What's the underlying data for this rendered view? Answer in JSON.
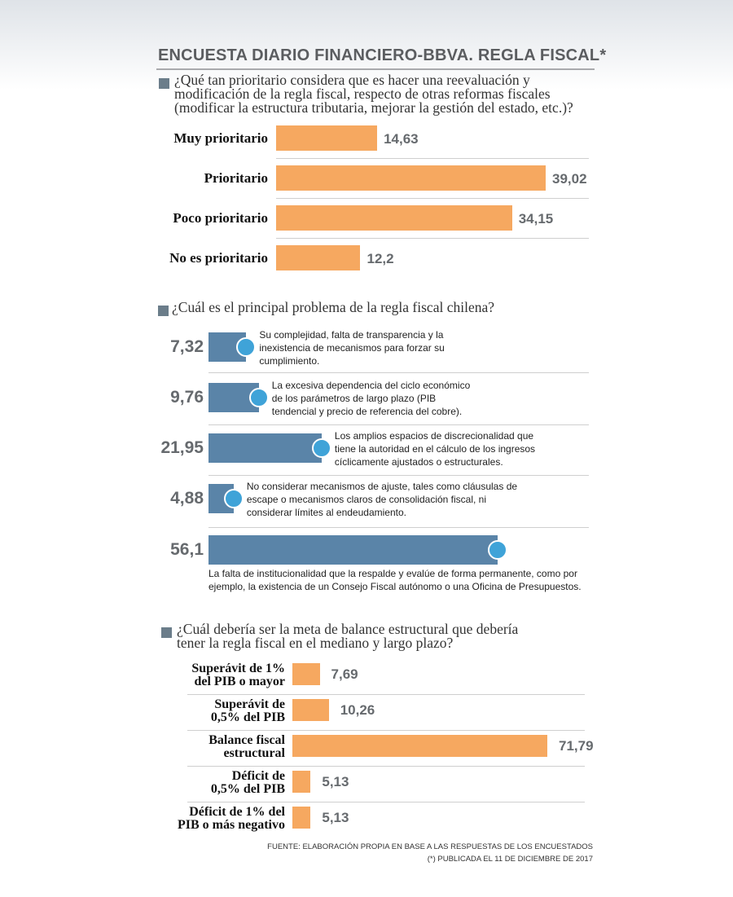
{
  "header": {
    "title": "ENCUESTA DIARIO FINANCIERO-BBVA. REGLA FISCAL*"
  },
  "colors": {
    "orange_bar": "#f6a860",
    "blue_bar": "#5a84a8",
    "blue_dot": "#3fa3d8",
    "value_text": "#666a6e",
    "question_square": "#6b7d8a"
  },
  "chart_data": [
    {
      "type": "bar",
      "orientation": "horizontal",
      "question": [
        "¿Qué tan prioritario considera que es hacer una reevaluación y",
        "modificación de la regla fiscal, respecto de otras reformas fiscales",
        "(modificar la estructura tributaria, mejorar la gestión del estado, etc.)?"
      ],
      "categories": [
        "Muy prioritario",
        "Prioritario",
        "Poco prioritario",
        "No es prioritario"
      ],
      "values": [
        14.63,
        39.02,
        34.15,
        12.2
      ],
      "value_labels": [
        "14,63",
        "39,02",
        "34,15",
        "12,2"
      ]
    },
    {
      "type": "bar",
      "orientation": "horizontal",
      "question": [
        "¿Cuál es el principal problema de la regla fiscal chilena?"
      ],
      "values": [
        7.32,
        9.76,
        21.95,
        4.88,
        56.1
      ],
      "value_labels": [
        "7,32",
        "9,76",
        "21,95",
        "4,88",
        "56,1"
      ],
      "descriptions": [
        [
          "Su complejidad, falta de transparencia y la",
          "inexistencia de mecanismos para forzar su",
          "cumplimiento."
        ],
        [
          "La excesiva dependencia del ciclo económico",
          "de los parámetros de largo plazo (PIB",
          "tendencial y precio de referencia del cobre)."
        ],
        [
          "Los amplios espacios de discrecionalidad que",
          "tiene la autoridad en el cálculo de los ingresos",
          "cíclicamente ajustados o estructurales."
        ],
        [
          "No considerar mecanismos de ajuste, tales como cláusulas de",
          "escape o mecanismos claros de consolidación fiscal, ni",
          "considerar límites al endeudamiento."
        ],
        [
          "La falta de institucionalidad que la respalde y evalúe de forma permanente, como por",
          "ejemplo, la existencia de un Consejo Fiscal autónomo o una Oficina de Presupuestos."
        ]
      ]
    },
    {
      "type": "bar",
      "orientation": "horizontal",
      "question": [
        "¿Cuál debería ser la meta de balance estructural que debería",
        "tener la regla fiscal en el mediano y largo plazo?"
      ],
      "categories": [
        [
          "Superávit de 1%",
          "del PIB o mayor"
        ],
        [
          "Superávit de",
          "0,5% del PIB"
        ],
        [
          "Balance fiscal",
          "estructural"
        ],
        [
          "Déficit de",
          "0,5% del PIB"
        ],
        [
          "Déficit de 1% del",
          "PIB o más negativo"
        ]
      ],
      "values": [
        7.69,
        10.26,
        71.79,
        5.13,
        5.13
      ],
      "value_labels": [
        "7,69",
        "10,26",
        "71,79",
        "5,13",
        "5,13"
      ]
    }
  ],
  "footer": {
    "source": "FUENTE: ELABORACIÓN PROPIA EN BASE A LAS RESPUESTAS DE LOS ENCUESTADOS",
    "note": "(*) PUBLICADA EL 11 DE DICIEMBRE DE 2017"
  }
}
